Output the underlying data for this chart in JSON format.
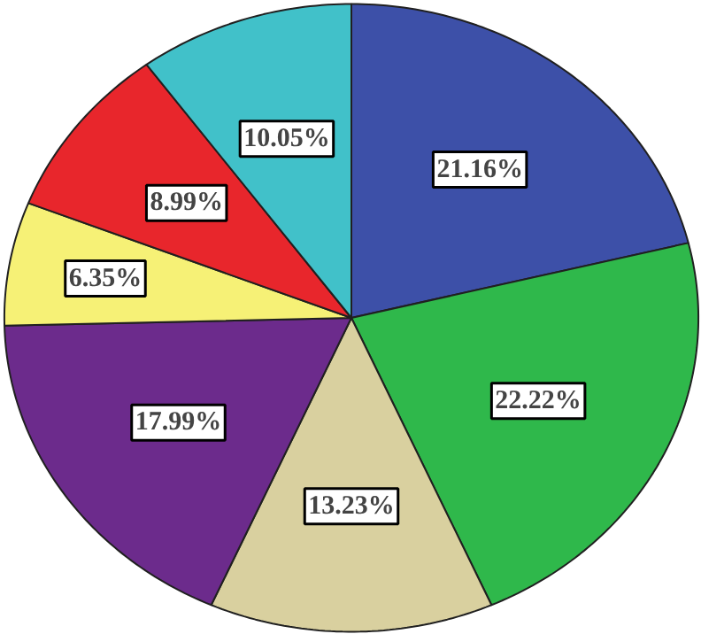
{
  "chart_data": {
    "type": "pie",
    "categories": [
      null,
      null,
      null,
      null,
      null,
      null,
      null
    ],
    "values": [
      21.16,
      22.22,
      13.23,
      17.99,
      6.35,
      8.99,
      10.05
    ],
    "colors": [
      "#3d50a8",
      "#2fb84b",
      "#d9d09f",
      "#6c2b8c",
      "#f6f176",
      "#e8262c",
      "#41c1c9"
    ],
    "value_labels": [
      "21.16%",
      "22.22%",
      "13.23%",
      "17.99%",
      "6.35%",
      "8.99%",
      "10.05%"
    ]
  }
}
